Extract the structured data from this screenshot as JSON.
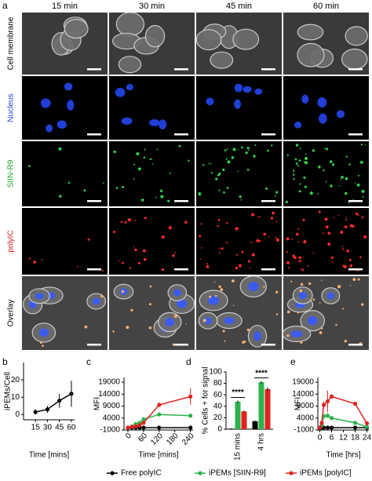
{
  "panel_a": {
    "letter": "a",
    "columns": [
      "15 min",
      "30 min",
      "45 min",
      "60 min"
    ],
    "rows": [
      "Cell membrane",
      "Nucleus",
      "SIIN-R9",
      "polyIC",
      "Overlay"
    ],
    "row_colors": [
      "#000000",
      "#1f3fd6",
      "#1a9e2a",
      "#d62020",
      "#000000"
    ]
  },
  "chart_data": [
    {
      "panel": "b",
      "type": "line",
      "y_label": "iPEMs/Cell",
      "x_label": "Time [mins]",
      "x": [
        15,
        30,
        45,
        60
      ],
      "series": [
        {
          "color": "#000000",
          "values": [
            1.5,
            3,
            8,
            12
          ],
          "errors": [
            1.5,
            2,
            4,
            7.5
          ]
        }
      ],
      "xlim": [
        0,
        64
      ],
      "ylim": [
        -3,
        30
      ],
      "xticks": [
        15,
        30,
        45,
        60
      ],
      "yticks": [
        0,
        10,
        20
      ]
    },
    {
      "panel": "c",
      "type": "line",
      "y_label": "MFI",
      "x_label": "Time [mins]",
      "x": [
        0,
        15,
        30,
        45,
        60,
        120,
        240
      ],
      "series": [
        {
          "name": "Free polyIC",
          "color": "#000000",
          "values": [
            0,
            0,
            0,
            0,
            0,
            0,
            0
          ]
        },
        {
          "name": "iPEMs [SIIN-R9]",
          "color": "#2bb24c",
          "values": [
            0,
            500,
            1500,
            2000,
            3500,
            5500,
            5000
          ],
          "errors": [
            0,
            200,
            300,
            300,
            300,
            700,
            800
          ]
        },
        {
          "name": "iPEMs [polyIC]",
          "color": "#e0231f",
          "values": [
            0,
            300,
            500,
            1000,
            2000,
            9500,
            13000
          ],
          "errors": [
            0,
            200,
            200,
            300,
            300,
            1000,
            3500
          ]
        }
      ],
      "xlim": [
        -15,
        250
      ],
      "ylim": [
        -1000,
        21000
      ],
      "xticks": [
        0,
        60,
        120,
        180,
        240
      ],
      "yticks": [
        -1000,
        4000,
        9000,
        14000,
        19000
      ]
    },
    {
      "panel": "d",
      "type": "bar",
      "y_label": "% Cells + for signal",
      "categories": [
        "15 mins",
        "4 hrs"
      ],
      "series": [
        {
          "color": "#000000",
          "values": [
            1,
            14
          ],
          "errors": [
            0.5,
            1
          ]
        },
        {
          "color": "#2bb24c",
          "values": [
            48,
            82
          ],
          "errors": [
            2,
            2
          ]
        },
        {
          "color": "#e0231f",
          "values": [
            31,
            70
          ],
          "errors": [
            1.5,
            3
          ]
        }
      ],
      "annotations": [
        "****",
        "****"
      ],
      "ylim": [
        0,
        100
      ],
      "yticks": [
        0,
        20,
        40,
        60,
        80,
        100
      ]
    },
    {
      "panel": "e",
      "type": "line",
      "y_label": "MFI",
      "x_label": "Time [hrs]",
      "x": [
        0,
        1,
        2,
        4,
        6,
        18,
        24
      ],
      "series": [
        {
          "color": "#000000",
          "values": [
            0,
            0,
            0,
            0,
            0,
            0,
            0
          ]
        },
        {
          "color": "#2bb24c",
          "values": [
            0,
            1000,
            4800,
            5000,
            4000,
            2000,
            300
          ],
          "errors": [
            0,
            300,
            800,
            1000,
            600,
            400,
            200
          ]
        },
        {
          "color": "#e0231f",
          "values": [
            0,
            2000,
            9500,
            11000,
            13000,
            10000,
            1800
          ],
          "errors": [
            0,
            500,
            1500,
            4500,
            1000,
            800,
            400
          ]
        }
      ],
      "xlim": [
        -1,
        25
      ],
      "ylim": [
        -1000,
        21000
      ],
      "xticks": [
        0,
        6,
        12,
        18,
        24
      ],
      "yticks": [
        -1000,
        4000,
        9000,
        14000,
        19000
      ]
    }
  ]
}
